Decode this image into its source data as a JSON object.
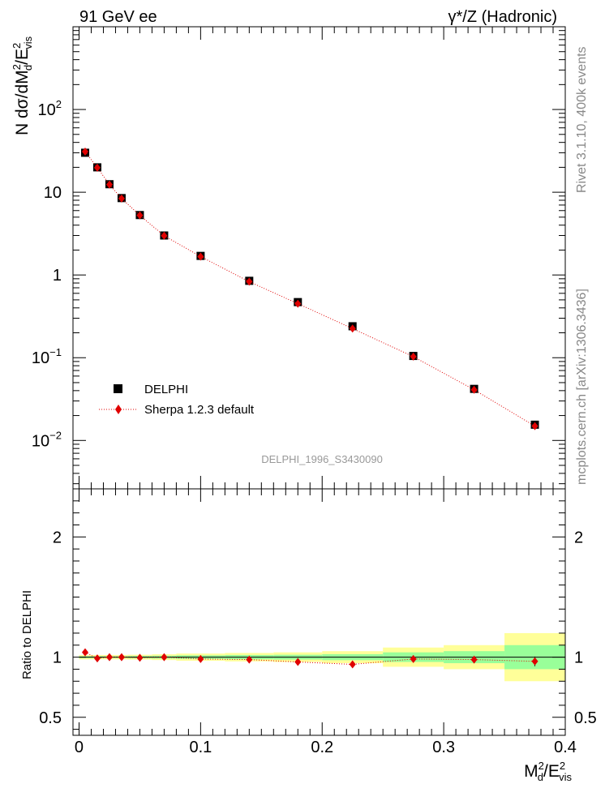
{
  "header": {
    "left_label": "91 GeV ee",
    "right_label_prefix": "γ*/Z (Hadronic)"
  },
  "side_labels": {
    "rivet": "Rivet 3.1.10,  400k events",
    "mcplots": "mcplots.cern.ch [arXiv:1306.3436]"
  },
  "watermark": "DELPHI_1996_S3430090",
  "axes": {
    "main_ylabel_parts": [
      "N dσ/dM",
      "2",
      "d",
      "/E",
      "2",
      "vis"
    ],
    "ratio_ylabel": "Ratio to DELPHI",
    "xlabel_parts": [
      "M",
      "2",
      "d",
      "/E",
      "2",
      "vis"
    ]
  },
  "colors": {
    "data": "#000000",
    "mc": "#e00000",
    "band_inner": "#99ff99",
    "band_outer": "#ffff99",
    "side_text": "#888888"
  },
  "legend": {
    "placement": "middle-left",
    "entries": [
      {
        "label": "DELPHI",
        "marker": "square",
        "color": "#000000"
      },
      {
        "label": "Sherpa 1.2.3 default",
        "marker": "diamond",
        "color": "#e00000"
      }
    ]
  },
  "chart_data": [
    {
      "type": "scatter",
      "panel": "main",
      "yscale": "log",
      "xlim": [
        -0.005,
        0.4
      ],
      "ylim": [
        0.0026,
        1000
      ],
      "yticks": [
        {
          "value": 0.01,
          "base": "10",
          "exp": "−2"
        },
        {
          "value": 0.1,
          "base": "10",
          "exp": "−1"
        },
        {
          "value": 1,
          "base": "1",
          "exp": ""
        },
        {
          "value": 10,
          "base": "10",
          "exp": ""
        },
        {
          "value": 100,
          "base": "10",
          "exp": "2"
        }
      ],
      "bins": [
        [
          0,
          0.01
        ],
        [
          0.01,
          0.02
        ],
        [
          0.02,
          0.03
        ],
        [
          0.03,
          0.04
        ],
        [
          0.04,
          0.06
        ],
        [
          0.06,
          0.08
        ],
        [
          0.08,
          0.12
        ],
        [
          0.12,
          0.16
        ],
        [
          0.16,
          0.2
        ],
        [
          0.2,
          0.25
        ],
        [
          0.25,
          0.3
        ],
        [
          0.3,
          0.35
        ],
        [
          0.35,
          0.4
        ]
      ],
      "series": [
        {
          "name": "DELPHI",
          "x": [
            0.005,
            0.015,
            0.025,
            0.035,
            0.05,
            0.07,
            0.1,
            0.14,
            0.18,
            0.225,
            0.275,
            0.325,
            0.375
          ],
          "values": [
            30,
            20,
            12.5,
            8.5,
            5.3,
            3.0,
            1.7,
            0.85,
            0.47,
            0.24,
            0.105,
            0.042,
            0.0155
          ]
        },
        {
          "name": "Sherpa 1.2.3 default",
          "x": [
            0.005,
            0.015,
            0.025,
            0.035,
            0.05,
            0.07,
            0.1,
            0.14,
            0.18,
            0.225,
            0.275,
            0.325,
            0.375
          ],
          "values": [
            31,
            19.8,
            12.4,
            8.4,
            5.25,
            2.98,
            1.67,
            0.83,
            0.45,
            0.225,
            0.103,
            0.041,
            0.0149
          ]
        }
      ]
    },
    {
      "type": "scatter",
      "panel": "ratio",
      "xlim": [
        -0.005,
        0.4
      ],
      "ylim": [
        0.35,
        2.4
      ],
      "xticks": [
        0,
        0.1,
        0.2,
        0.3,
        0.4
      ],
      "xtick_labels": [
        "0",
        "0.1",
        "0.2",
        "0.3",
        "0.4"
      ],
      "yticks": [
        0.5,
        1,
        2
      ],
      "ytick_labels": [
        "0.5",
        "1",
        "2"
      ],
      "bands": {
        "bins": [
          [
            0,
            0.01
          ],
          [
            0.01,
            0.02
          ],
          [
            0.02,
            0.03
          ],
          [
            0.03,
            0.04
          ],
          [
            0.04,
            0.06
          ],
          [
            0.06,
            0.08
          ],
          [
            0.08,
            0.12
          ],
          [
            0.12,
            0.16
          ],
          [
            0.16,
            0.2
          ],
          [
            0.2,
            0.25
          ],
          [
            0.25,
            0.3
          ],
          [
            0.3,
            0.35
          ],
          [
            0.35,
            0.4
          ]
        ],
        "inner": [
          0.008,
          0.008,
          0.008,
          0.008,
          0.01,
          0.012,
          0.015,
          0.018,
          0.02,
          0.025,
          0.04,
          0.05,
          0.1
        ],
        "outer": [
          0.018,
          0.018,
          0.018,
          0.018,
          0.02,
          0.024,
          0.03,
          0.035,
          0.04,
          0.05,
          0.08,
          0.1,
          0.2
        ]
      },
      "series": [
        {
          "name": "Sherpa 1.2.3 default",
          "x": [
            0.005,
            0.015,
            0.025,
            0.035,
            0.05,
            0.07,
            0.1,
            0.14,
            0.18,
            0.225,
            0.275,
            0.325,
            0.375
          ],
          "values": [
            1.04,
            0.99,
            1.0,
            1.0,
            0.995,
            1.0,
            0.985,
            0.98,
            0.96,
            0.94,
            0.985,
            0.98,
            0.965
          ],
          "errors": [
            0.01,
            0.01,
            0.01,
            0.01,
            0.01,
            0.01,
            0.01,
            0.012,
            0.015,
            0.015,
            0.02,
            0.03,
            0.04
          ]
        }
      ]
    }
  ]
}
